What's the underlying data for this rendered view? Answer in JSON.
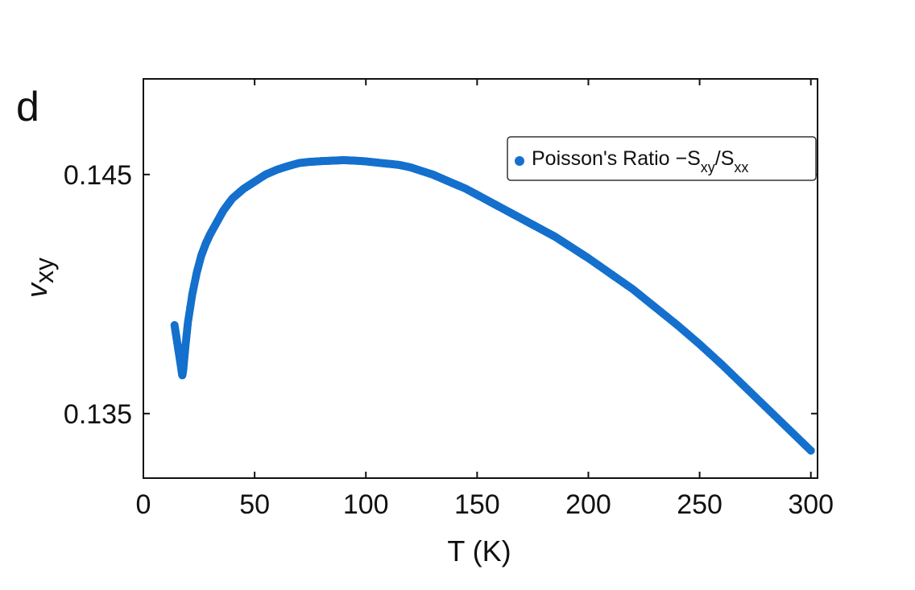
{
  "chart_data": {
    "type": "scatter",
    "panel_label": "d",
    "xlabel": "T (K)",
    "ylabel_main": "v",
    "ylabel_sub": "xy",
    "xlim": [
      0,
      303
    ],
    "ylim": [
      0.1323,
      0.149
    ],
    "x_ticks": [
      0,
      50,
      100,
      150,
      200,
      250,
      300
    ],
    "x_tick_labels": [
      "0",
      "50",
      "100",
      "150",
      "200",
      "250",
      "300"
    ],
    "y_ticks": [
      0.135,
      0.145
    ],
    "y_tick_labels": [
      "0.135",
      "0.145"
    ],
    "grid": false,
    "legend": {
      "placement": "top-right",
      "text_main": "Poisson's Ratio −S",
      "sub1": "xy",
      "slash": "/S",
      "sub2": "xx"
    },
    "series": [
      {
        "name": "Poisson's Ratio −Sxy/Sxx",
        "color": "#1470cc",
        "x": [
          14,
          15,
          16,
          17,
          17.5,
          18,
          19,
          20,
          22,
          24,
          26,
          28,
          30,
          33,
          36,
          40,
          45,
          50,
          55,
          60,
          65,
          70,
          75,
          80,
          85,
          90,
          95,
          100,
          105,
          110,
          115,
          120,
          125,
          130,
          135,
          140,
          145,
          150,
          155,
          160,
          165,
          170,
          175,
          180,
          185,
          190,
          195,
          200,
          210,
          220,
          230,
          240,
          250,
          260,
          270,
          280,
          290,
          300
        ],
        "y": [
          0.1387,
          0.1381,
          0.1375,
          0.1369,
          0.1366,
          0.1369,
          0.1379,
          0.1388,
          0.14,
          0.1409,
          0.1416,
          0.1421,
          0.1425,
          0.143,
          0.1435,
          0.144,
          0.1444,
          0.1447,
          0.145,
          0.1452,
          0.14535,
          0.14548,
          0.14553,
          0.14556,
          0.14558,
          0.1456,
          0.14558,
          0.14555,
          0.1455,
          0.14545,
          0.1454,
          0.1453,
          0.14515,
          0.145,
          0.1448,
          0.1446,
          0.1444,
          0.14415,
          0.1439,
          0.14365,
          0.1434,
          0.14315,
          0.1429,
          0.14265,
          0.1424,
          0.1421,
          0.1418,
          0.1415,
          0.14085,
          0.1402,
          0.13945,
          0.1387,
          0.1379,
          0.13705,
          0.13615,
          0.13525,
          0.13435,
          0.13345
        ]
      }
    ]
  }
}
